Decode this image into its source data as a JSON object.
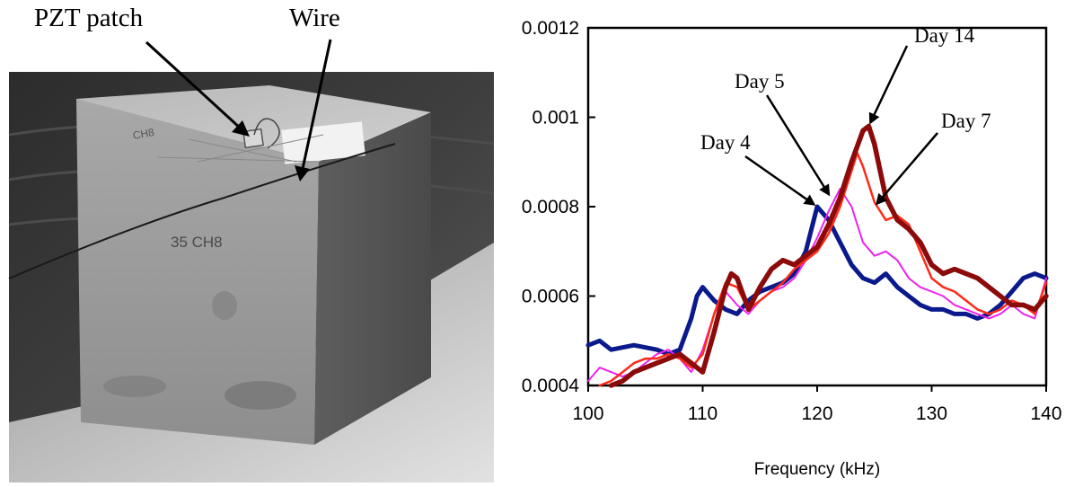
{
  "photo": {
    "callouts": {
      "pzt_patch": "PZT patch",
      "wire": "Wire"
    },
    "block_marks": [
      "CH8",
      "35 CH8"
    ]
  },
  "chart_data": {
    "type": "line",
    "xlabel": "Frequency (kHz)",
    "ylabel": "",
    "xlim": [
      100,
      140
    ],
    "ylim": [
      0.0004,
      0.0012
    ],
    "x_ticks": [
      100,
      110,
      120,
      130,
      140
    ],
    "x_tick_labels": [
      "100",
      "110",
      "120",
      "130",
      "140"
    ],
    "y_ticks": [
      0.0004,
      0.0006,
      0.0008,
      0.001,
      0.0012
    ],
    "y_tick_labels": [
      "0.0004",
      "0.0006",
      "0.0008",
      "0.001",
      "0.0012"
    ],
    "grid": false,
    "series": [
      {
        "name": "Day 4",
        "color": "#0a1a8c",
        "x": [
          100,
          101,
          102,
          104,
          106,
          107,
          108,
          109,
          109.5,
          110,
          111,
          112,
          113,
          114,
          115,
          116,
          117,
          118,
          119,
          120,
          121,
          122,
          123,
          124,
          125,
          126,
          127,
          128,
          129,
          130,
          131,
          132,
          133,
          134,
          135,
          136,
          137,
          138,
          139,
          140
        ],
        "values": [
          0.00049,
          0.0005,
          0.00048,
          0.00049,
          0.00048,
          0.00047,
          0.00048,
          0.00055,
          0.0006,
          0.00062,
          0.00059,
          0.00057,
          0.00056,
          0.00059,
          0.00061,
          0.00062,
          0.00063,
          0.00065,
          0.0007,
          0.0008,
          0.00077,
          0.00072,
          0.00067,
          0.00064,
          0.00063,
          0.00065,
          0.00062,
          0.0006,
          0.00058,
          0.00057,
          0.00057,
          0.00056,
          0.00056,
          0.00055,
          0.00056,
          0.00058,
          0.00061,
          0.00064,
          0.00065,
          0.00064
        ]
      },
      {
        "name": "Day 5",
        "color": "#ee22ee",
        "x": [
          100,
          101,
          102,
          103,
          104,
          105,
          106,
          107,
          108,
          109,
          110,
          111,
          112,
          113,
          114,
          115,
          116,
          117,
          118,
          119,
          120,
          121,
          122,
          123,
          124,
          125,
          126,
          127,
          128,
          129,
          130,
          131,
          132,
          133,
          134,
          135,
          136,
          137,
          138,
          139,
          140
        ],
        "values": [
          0.00041,
          0.00044,
          0.00043,
          0.00042,
          0.00043,
          0.00045,
          0.00047,
          0.00048,
          0.00046,
          0.00043,
          0.00048,
          0.00056,
          0.00061,
          0.00058,
          0.00056,
          0.00059,
          0.00061,
          0.00062,
          0.00064,
          0.00068,
          0.00073,
          0.00079,
          0.00084,
          0.0008,
          0.00072,
          0.00069,
          0.0007,
          0.00068,
          0.00064,
          0.00062,
          0.00061,
          0.0006,
          0.00058,
          0.00057,
          0.00056,
          0.00055,
          0.00056,
          0.00058,
          0.00056,
          0.00055,
          0.00064
        ]
      },
      {
        "name": "Day 7",
        "color": "#ff2a1a",
        "x": [
          101,
          102,
          103,
          104,
          105,
          106,
          107,
          108,
          109,
          110,
          111,
          112,
          113,
          114,
          115,
          116,
          117,
          118,
          119,
          120,
          121,
          122,
          123,
          123.5,
          124,
          125,
          126,
          127,
          128,
          129,
          130,
          131,
          132,
          133,
          134,
          135,
          136,
          137,
          138,
          139,
          140
        ],
        "values": [
          0.0004,
          0.00041,
          0.00043,
          0.00045,
          0.00046,
          0.00046,
          0.00047,
          0.00046,
          0.00044,
          0.00047,
          0.00056,
          0.00063,
          0.00062,
          0.00057,
          0.00059,
          0.00061,
          0.00063,
          0.00066,
          0.00068,
          0.0007,
          0.00074,
          0.0008,
          0.00088,
          0.00092,
          0.00089,
          0.00081,
          0.00077,
          0.00078,
          0.00076,
          0.0007,
          0.00064,
          0.00062,
          0.00061,
          0.00059,
          0.00057,
          0.00056,
          0.00057,
          0.00059,
          0.00058,
          0.00056,
          0.00063
        ]
      },
      {
        "name": "Day 14",
        "color": "#8b0a0a",
        "x": [
          102,
          103,
          104,
          105,
          106,
          107,
          108,
          109,
          110,
          111,
          112,
          112.5,
          113,
          114,
          115,
          116,
          117,
          118,
          119,
          120,
          121,
          122,
          123,
          124,
          124.5,
          125,
          126,
          127,
          128,
          129,
          130,
          131,
          132,
          133,
          134,
          135,
          136,
          137,
          138,
          139,
          140
        ],
        "values": [
          0.0004,
          0.00041,
          0.00043,
          0.00044,
          0.00045,
          0.00046,
          0.00047,
          0.00045,
          0.00043,
          0.00052,
          0.00062,
          0.00065,
          0.00064,
          0.00057,
          0.00062,
          0.00066,
          0.00068,
          0.00067,
          0.00069,
          0.00071,
          0.00076,
          0.00082,
          0.0009,
          0.00097,
          0.00098,
          0.00094,
          0.00082,
          0.00077,
          0.00075,
          0.00072,
          0.00067,
          0.00065,
          0.00066,
          0.00065,
          0.00064,
          0.00062,
          0.0006,
          0.00058,
          0.00058,
          0.00057,
          0.0006
        ]
      }
    ],
    "annotations": [
      {
        "text": "Day 4",
        "series": "Day 4",
        "point": [
          120,
          0.0008
        ]
      },
      {
        "text": "Day 5",
        "series": "Day 5",
        "point": [
          121.2,
          0.00082
        ]
      },
      {
        "text": "Day 14",
        "series": "Day 14",
        "point": [
          124.5,
          0.00098
        ]
      },
      {
        "text": "Day 7",
        "series": "Day 7",
        "point": [
          125,
          0.0008
        ]
      }
    ]
  }
}
